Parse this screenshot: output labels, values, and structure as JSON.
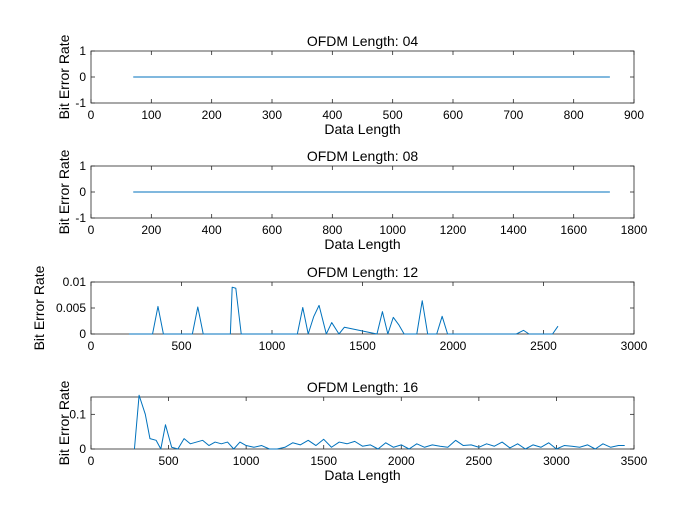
{
  "chart_data": [
    {
      "type": "line",
      "title": "OFDM Length: 04",
      "xlabel": "Data Length",
      "ylabel": "Bit Error Rate",
      "xlim": [
        0,
        900
      ],
      "ylim": [
        -1,
        1
      ],
      "xticks": [
        0,
        100,
        200,
        300,
        400,
        500,
        600,
        700,
        800,
        900
      ],
      "yticks": [
        -1,
        0,
        1
      ],
      "ytick_labels": [
        "-1",
        "0",
        "1"
      ],
      "line_color": "#0072BD",
      "series": [
        {
          "x": [
            70,
            860
          ],
          "y": [
            0,
            0
          ]
        }
      ]
    },
    {
      "type": "line",
      "title": "OFDM Length: 08",
      "xlabel": "Data Length",
      "ylabel": "Bit Error Rate",
      "xlim": [
        0,
        1800
      ],
      "ylim": [
        -1,
        1
      ],
      "xticks": [
        0,
        200,
        400,
        600,
        800,
        1000,
        1200,
        1400,
        1600,
        1800
      ],
      "yticks": [
        -1,
        0,
        1
      ],
      "ytick_labels": [
        "-1",
        "0",
        "1"
      ],
      "line_color": "#0072BD",
      "series": [
        {
          "x": [
            140,
            1720
          ],
          "y": [
            0,
            0
          ]
        }
      ]
    },
    {
      "type": "line",
      "title": "OFDM Length: 12",
      "xlabel": "",
      "ylabel": "Bit Error Rate",
      "xlim": [
        0,
        3000
      ],
      "ylim": [
        0,
        0.01
      ],
      "xticks": [
        0,
        500,
        1000,
        1500,
        2000,
        2500,
        3000
      ],
      "yticks": [
        0,
        0.005,
        0.01
      ],
      "ytick_labels": [
        "0",
        "0.005",
        "0.01"
      ],
      "line_color": "#0072BD",
      "series": [
        {
          "x": [
            210,
            340,
            370,
            400,
            560,
            590,
            620,
            770,
            780,
            800,
            830,
            1140,
            1170,
            1200,
            1230,
            1260,
            1300,
            1330,
            1370,
            1400,
            1580,
            1610,
            1640,
            1670,
            1700,
            1730,
            1800,
            1830,
            1860,
            1910,
            1940,
            1970,
            2350,
            2390,
            2420,
            2550,
            2580
          ],
          "y": [
            0,
            0,
            0.0053,
            0,
            0,
            0.0052,
            0,
            0,
            0.009,
            0.0088,
            0,
            0,
            0.0051,
            0,
            0.0033,
            0.0055,
            0,
            0.0022,
            0,
            0.0013,
            0,
            0.0043,
            0,
            0.0032,
            0.0018,
            0,
            0,
            0.0064,
            0,
            0,
            0.0034,
            0,
            0,
            0.0007,
            0,
            0,
            0.0015
          ]
        }
      ]
    },
    {
      "type": "line",
      "title": "OFDM Length: 16",
      "xlabel": "Data Length",
      "ylabel": "Bit Error Rate",
      "xlim": [
        0,
        3500
      ],
      "ylim": [
        0,
        0.15
      ],
      "xticks": [
        0,
        500,
        1000,
        1500,
        2000,
        2500,
        3000,
        3500
      ],
      "yticks": [
        0,
        0.1
      ],
      "ytick_labels": [
        "0",
        "0.1"
      ],
      "line_color": "#0072BD",
      "series": [
        {
          "x": [
            280,
            310,
            350,
            380,
            420,
            450,
            480,
            520,
            560,
            600,
            640,
            680,
            720,
            760,
            800,
            840,
            880,
            920,
            960,
            1000,
            1050,
            1100,
            1150,
            1200,
            1250,
            1300,
            1350,
            1400,
            1450,
            1500,
            1550,
            1600,
            1650,
            1700,
            1750,
            1800,
            1850,
            1900,
            1950,
            2000,
            2050,
            2100,
            2150,
            2200,
            2250,
            2300,
            2350,
            2400,
            2450,
            2500,
            2550,
            2600,
            2650,
            2700,
            2750,
            2800,
            2850,
            2900,
            2950,
            3000,
            3050,
            3100,
            3150,
            3200,
            3250,
            3300,
            3350,
            3400,
            3440
          ],
          "y": [
            0,
            0.155,
            0.1,
            0.03,
            0.025,
            0.0,
            0.07,
            0.005,
            0.0,
            0.03,
            0.015,
            0.02,
            0.025,
            0.01,
            0.02,
            0.015,
            0.02,
            0.0,
            0.02,
            0.01,
            0.005,
            0.01,
            0.0,
            0.0,
            0.005,
            0.018,
            0.012,
            0.025,
            0.01,
            0.028,
            0.005,
            0.02,
            0.015,
            0.022,
            0.008,
            0.012,
            0.0,
            0.018,
            0.005,
            0.012,
            0.0,
            0.015,
            0.005,
            0.012,
            0.008,
            0.005,
            0.025,
            0.01,
            0.012,
            0.005,
            0.015,
            0.008,
            0.02,
            0.003,
            0.015,
            0.0,
            0.012,
            0.005,
            0.018,
            0.0,
            0.01,
            0.008,
            0.005,
            0.012,
            0.0,
            0.015,
            0.005,
            0.01,
            0.01
          ]
        }
      ]
    }
  ]
}
